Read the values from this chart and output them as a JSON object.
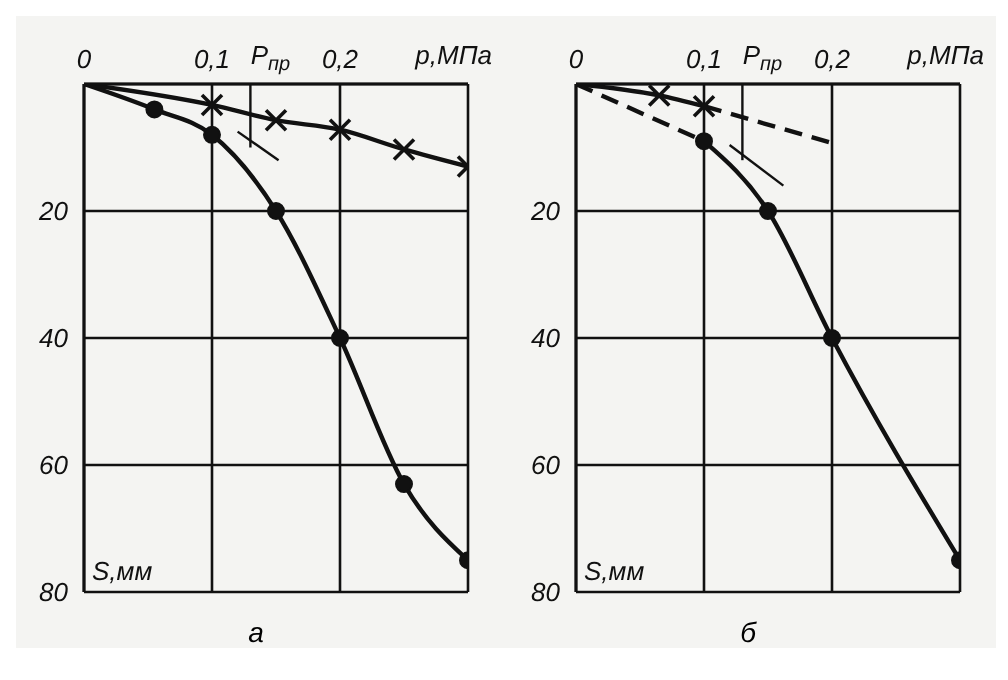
{
  "chart_data": [
    {
      "type": "line",
      "title": "а",
      "xlabel": "р,МПа",
      "ylabel": "S,мм",
      "xlim": [
        0,
        0.3
      ],
      "ylim": [
        80,
        0
      ],
      "xticks": [
        {
          "value": 0,
          "label": "0"
        },
        {
          "value": 0.1,
          "label": "0,1"
        },
        {
          "value": 0.2,
          "label": "0,2"
        },
        {
          "value": 0.3,
          "label": null
        }
      ],
      "yticks": [
        {
          "value": 0,
          "label": null
        },
        20,
        40,
        60,
        80
      ],
      "grid": true,
      "annotations": [
        {
          "text": "P$_{пр}$",
          "x": 0.13,
          "y": 0
        }
      ],
      "series": [
        {
          "color": "#111111",
          "x": [
            0,
            0.055,
            0.1,
            0.15,
            0.2,
            0.25,
            0.3
          ],
          "values": [
            0,
            4,
            8,
            20,
            40,
            63,
            75
          ],
          "marker": "circle",
          "line_style": "solid"
        },
        {
          "color": "#111111",
          "x": [
            0,
            0.1,
            0.15,
            0.2,
            0.25,
            0.3
          ],
          "values": [
            0,
            3.3,
            5.7,
            7.2,
            10.3,
            13
          ],
          "marker": "cross",
          "line_style": "solid"
        },
        {
          "color": "#111111",
          "x": [
            0.12,
            0.152
          ],
          "values": [
            7.5,
            12
          ],
          "marker": "none",
          "line_style": "solid"
        },
        {
          "color": "#111111",
          "x": [
            0.13,
            0.13
          ],
          "values": [
            0,
            10
          ],
          "marker": "none",
          "line_style": "solid"
        }
      ]
    },
    {
      "type": "line",
      "title": "б",
      "xlabel": "р,МПа",
      "ylabel": "S,мм",
      "xlim": [
        0,
        0.3
      ],
      "ylim": [
        80,
        0
      ],
      "xticks": [
        {
          "value": 0,
          "label": "0"
        },
        {
          "value": 0.1,
          "label": "0,1"
        },
        {
          "value": 0.2,
          "label": "0,2"
        },
        {
          "value": 0.3,
          "label": null
        }
      ],
      "yticks": [
        {
          "value": 0,
          "label": null
        },
        20,
        40,
        60,
        80
      ],
      "grid": true,
      "annotations": [
        {
          "text": "P$_{пр}$",
          "x": 0.13,
          "y": 0
        }
      ],
      "series": [
        {
          "color": "#111111",
          "x": [
            0,
            0.1
          ],
          "values": [
            0,
            9
          ],
          "line_style": "dashed"
        },
        {
          "color": "#111111",
          "x": [
            0.1,
            0.15,
            0.2,
            0.3
          ],
          "values": [
            9,
            20,
            40,
            75
          ],
          "marker": "circle",
          "line_style": "solid"
        },
        {
          "color": "#111111",
          "x": [
            0,
            0.065,
            0.1
          ],
          "values": [
            0,
            1.8,
            3.5
          ],
          "marker": "cross",
          "line_style": "solid"
        },
        {
          "color": "#111111",
          "x": [
            0.1,
            0.2
          ],
          "values": [
            3.5,
            9.3
          ],
          "line_style": "dashed"
        },
        {
          "color": "#111111",
          "x": [
            0.12,
            0.162
          ],
          "values": [
            9.6,
            16
          ],
          "marker": "none",
          "line_style": "solid"
        },
        {
          "color": "#111111",
          "x": [
            0.13,
            0.13
          ],
          "values": [
            0,
            12
          ],
          "marker": "none",
          "line_style": "solid"
        }
      ]
    }
  ]
}
